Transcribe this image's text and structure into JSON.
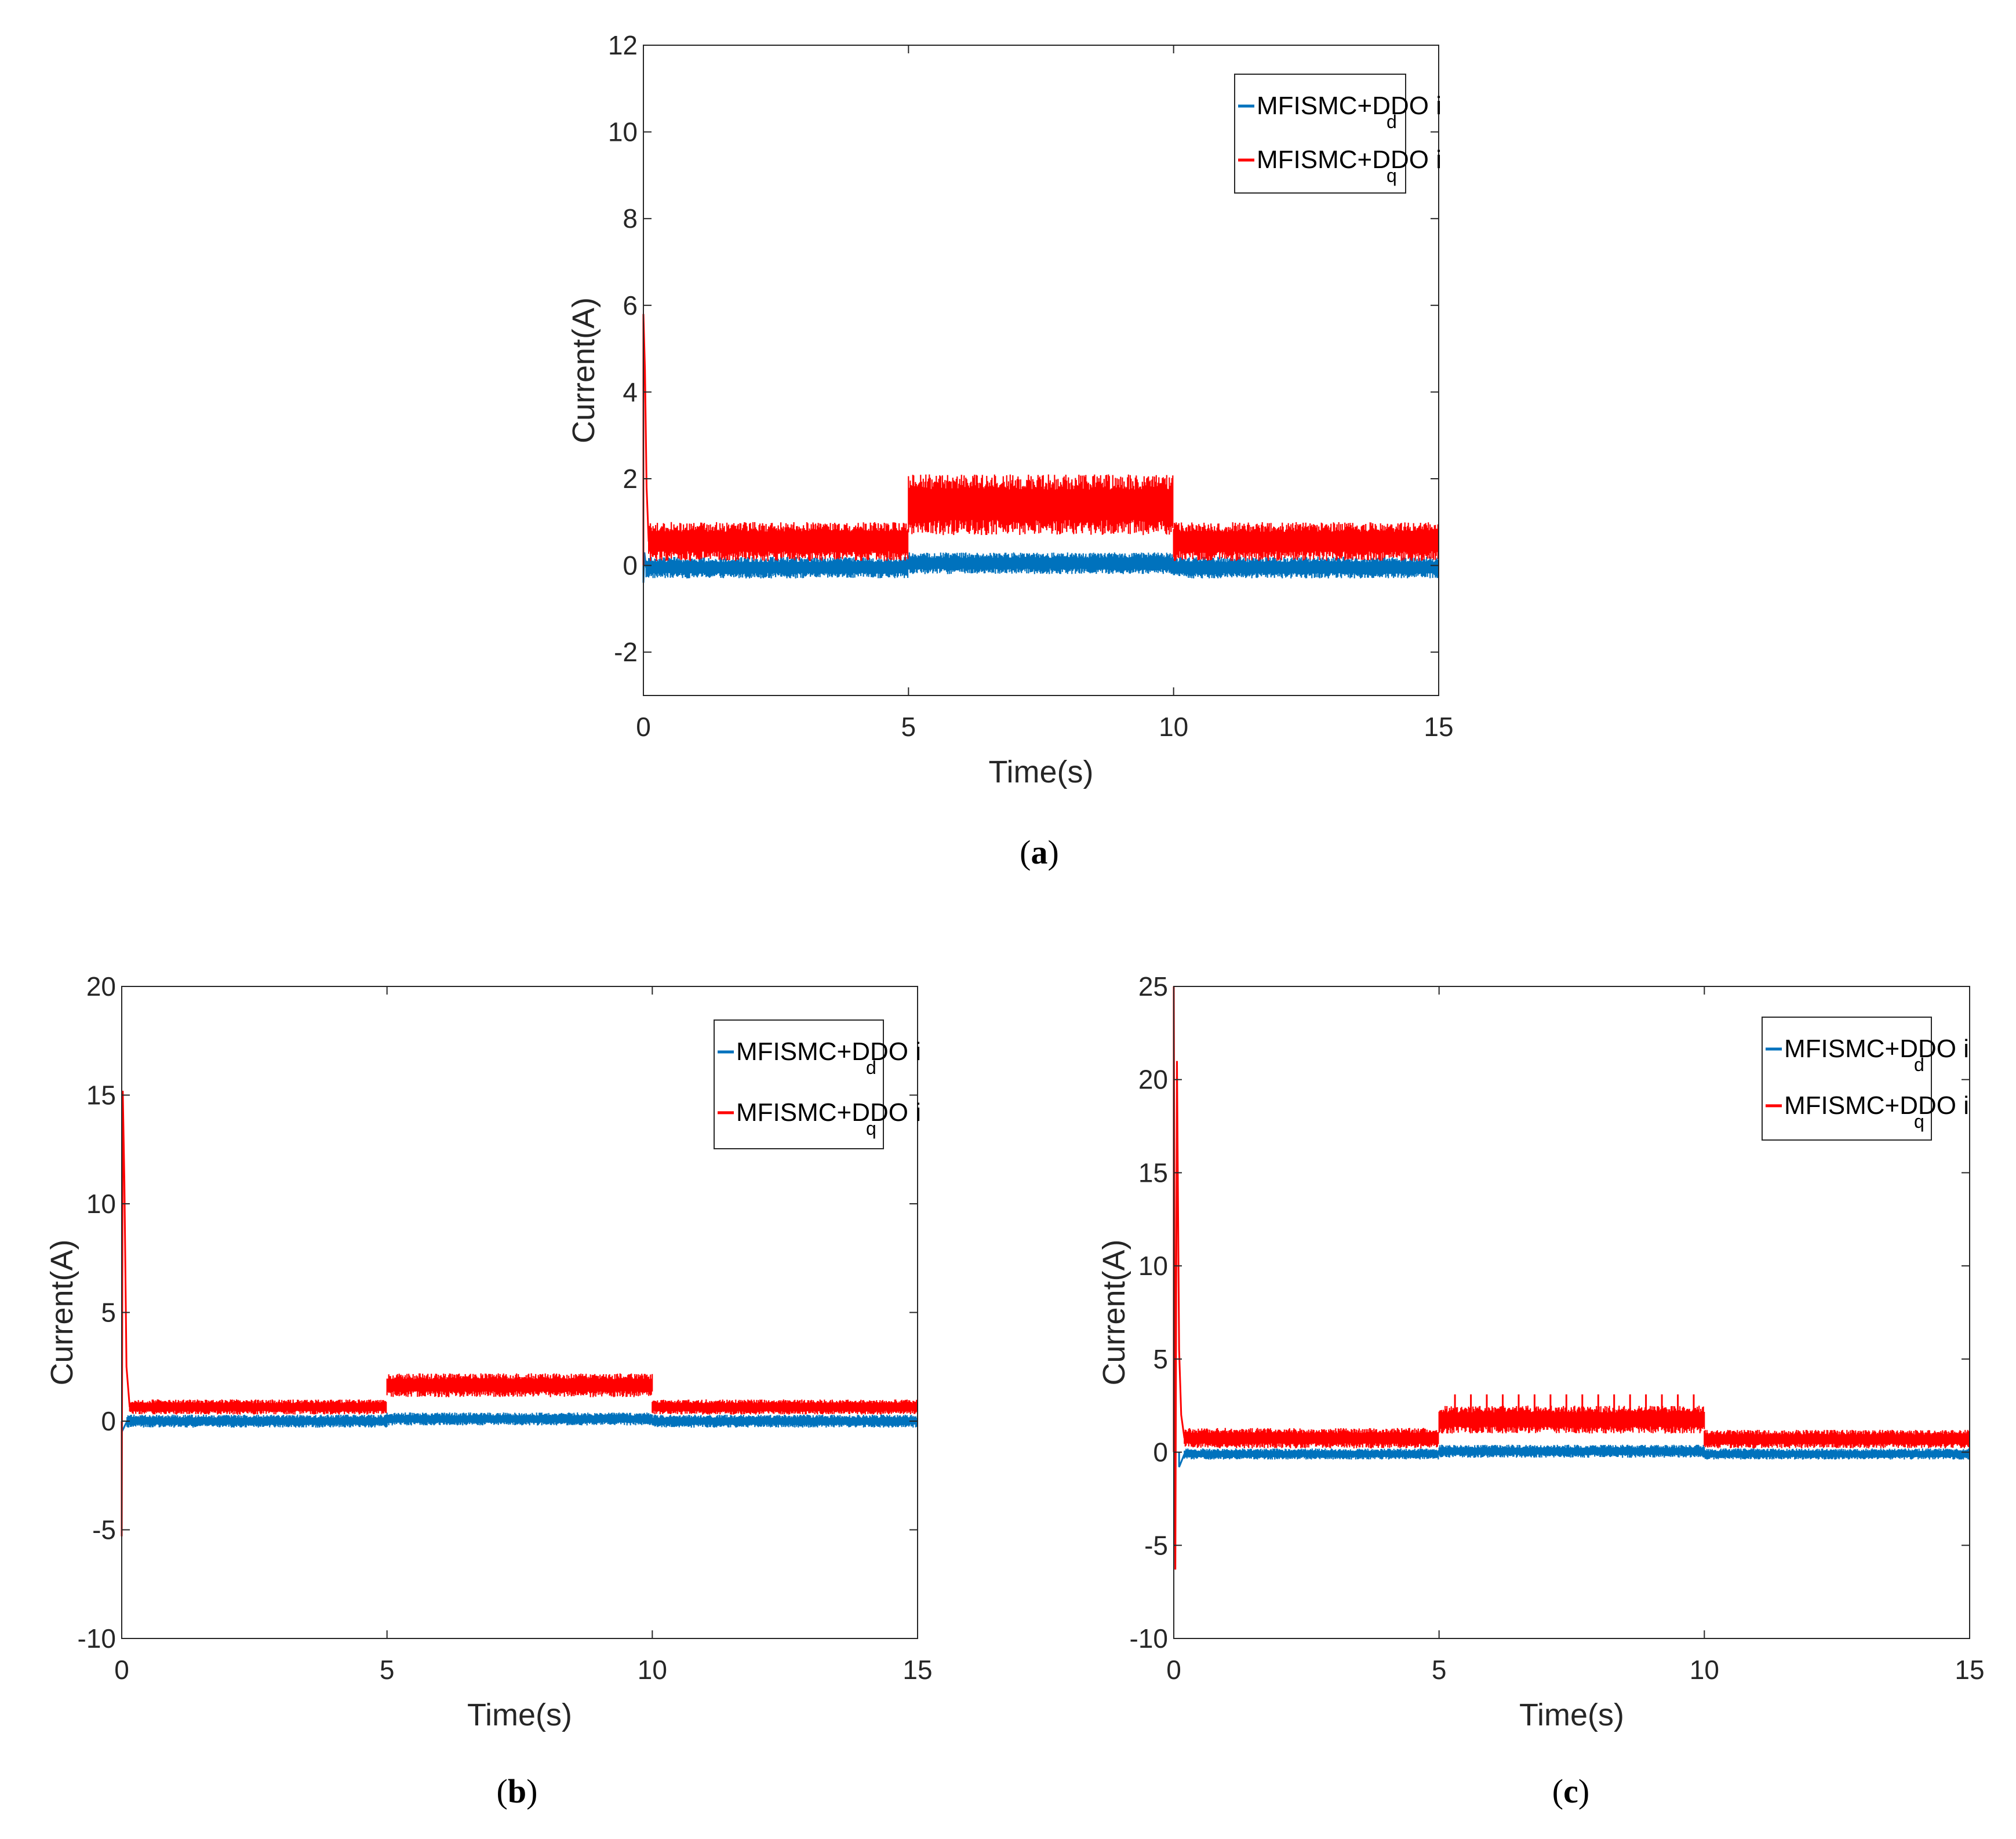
{
  "chart_data": [
    {
      "type": "line",
      "panel_label": "a",
      "xlabel": "Time(s)",
      "ylabel": "Current(A)",
      "xlim": [
        0,
        15
      ],
      "ylim": [
        -3,
        12
      ],
      "xticks": [
        0,
        5,
        10,
        15
      ],
      "yticks": [
        -2,
        0,
        2,
        4,
        6,
        8,
        10,
        12
      ],
      "legend_position": "top-right",
      "series": [
        {
          "name": "MFISMC+DDO i_d",
          "label_main": "MFISMC+DDO i",
          "label_sub": "d",
          "color": "#0072BD",
          "segments": [
            {
              "t_start": 0.05,
              "t_end": 5,
              "low": -0.3,
              "high": 0.2
            },
            {
              "t_start": 5,
              "t_end": 10,
              "low": -0.2,
              "high": 0.3
            },
            {
              "t_start": 10,
              "t_end": 15,
              "low": -0.3,
              "high": 0.2
            }
          ],
          "spikes": [
            {
              "t": 0,
              "value": -0.4
            },
            {
              "t": 0.02,
              "value": 0.3
            }
          ]
        },
        {
          "name": "MFISMC+DDO i_q",
          "label_main": "MFISMC+DDO i",
          "label_sub": "q",
          "color": "#FF0000",
          "segments": [
            {
              "t_start": 0.1,
              "t_end": 5,
              "low": 0.1,
              "high": 1.0
            },
            {
              "t_start": 5,
              "t_end": 10,
              "low": 0.7,
              "high": 2.1
            },
            {
              "t_start": 10,
              "t_end": 15,
              "low": 0.1,
              "high": 1.0
            }
          ],
          "spikes": [
            {
              "t": 0,
              "value": 5.8
            },
            {
              "t": 0.03,
              "value": 4.5
            },
            {
              "t": 0.06,
              "value": 1.8
            }
          ]
        }
      ]
    },
    {
      "type": "line",
      "panel_label": "b",
      "xlabel": "Time(s)",
      "ylabel": "Current(A)",
      "xlim": [
        0,
        15
      ],
      "ylim": [
        -10,
        20
      ],
      "xticks": [
        0,
        5,
        10,
        15
      ],
      "yticks": [
        -10,
        -5,
        0,
        5,
        10,
        15,
        20
      ],
      "legend_position": "top-right",
      "series": [
        {
          "name": "MFISMC+DDO i_d",
          "label_main": "MFISMC+DDO i",
          "label_sub": "d",
          "color": "#0072BD",
          "segments": [
            {
              "t_start": 0.1,
              "t_end": 5,
              "low": -0.3,
              "high": 0.3
            },
            {
              "t_start": 5,
              "t_end": 10,
              "low": -0.2,
              "high": 0.4
            },
            {
              "t_start": 10,
              "t_end": 15,
              "low": -0.3,
              "high": 0.3
            }
          ],
          "spikes": [
            {
              "t": 0,
              "value": -0.5
            }
          ]
        },
        {
          "name": "MFISMC+DDO i_q",
          "label_main": "MFISMC+DDO i",
          "label_sub": "q",
          "color": "#FF0000",
          "segments": [
            {
              "t_start": 0.15,
              "t_end": 5,
              "low": 0.3,
              "high": 1.0
            },
            {
              "t_start": 5,
              "t_end": 10,
              "low": 1.1,
              "high": 2.2
            },
            {
              "t_start": 10,
              "t_end": 15,
              "low": 0.3,
              "high": 1.0
            }
          ],
          "spikes": [
            {
              "t": 0,
              "value": -5.3
            },
            {
              "t": 0.02,
              "value": 15.2
            },
            {
              "t": 0.05,
              "value": 11.0
            },
            {
              "t": 0.09,
              "value": 2.5
            }
          ]
        }
      ]
    },
    {
      "type": "line",
      "panel_label": "c",
      "xlabel": "Time(s)",
      "ylabel": "Current(A)",
      "xlim": [
        0,
        15
      ],
      "ylim": [
        -10,
        25
      ],
      "xticks": [
        0,
        5,
        10,
        15
      ],
      "yticks": [
        -10,
        -5,
        0,
        5,
        10,
        15,
        20,
        25
      ],
      "legend_position": "top-right",
      "series": [
        {
          "name": "MFISMC+DDO i_d",
          "label_main": "MFISMC+DDO i",
          "label_sub": "d",
          "color": "#0072BD",
          "segments": [
            {
              "t_start": 0.2,
              "t_end": 5,
              "low": -0.4,
              "high": 0.2
            },
            {
              "t_start": 5,
              "t_end": 10,
              "low": -0.3,
              "high": 0.4
            },
            {
              "t_start": 10,
              "t_end": 15,
              "low": -0.4,
              "high": 0.2
            }
          ],
          "spikes": [
            {
              "t": 0.1,
              "value": -0.8
            }
          ]
        },
        {
          "name": "MFISMC+DDO i_q",
          "label_main": "MFISMC+DDO i",
          "label_sub": "q",
          "color": "#FF0000",
          "segments": [
            {
              "t_start": 0.2,
              "t_end": 5,
              "low": 0.2,
              "high": 1.3
            },
            {
              "t_start": 5,
              "t_end": 10,
              "low": 1.0,
              "high": 2.5
            },
            {
              "t_start": 10,
              "t_end": 15,
              "low": 0.2,
              "high": 1.2
            }
          ],
          "spikes": [
            {
              "t": 0,
              "value": 25.0
            },
            {
              "t": 0.03,
              "value": -6.3
            },
            {
              "t": 0.06,
              "value": 21.0
            },
            {
              "t": 0.1,
              "value": 5.5
            },
            {
              "t": 0.14,
              "value": 2.0
            }
          ],
          "periodic_peaks": {
            "t_start": 5.3,
            "t_end": 9.9,
            "period": 0.3,
            "value": 3.1
          }
        }
      ]
    }
  ]
}
